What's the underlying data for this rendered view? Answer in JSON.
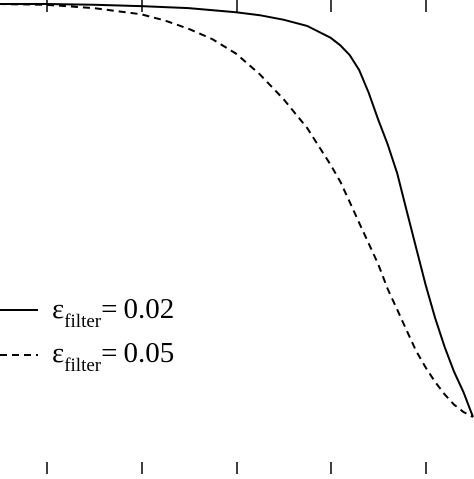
{
  "chart_data": {
    "type": "line",
    "title": "",
    "xlabel": "",
    "ylabel": "",
    "xlim": [
      0,
      1
    ],
    "ylim": [
      0,
      1
    ],
    "grid": false,
    "legend": {
      "placement": "bottom-left",
      "entries": [
        {
          "symbol": "ε",
          "subscript": "filter",
          "relation": "=",
          "value": "0.02",
          "style": "solid"
        },
        {
          "symbol": "ε",
          "subscript": "filter",
          "relation": "=",
          "value": "0.05",
          "style": "dashed"
        }
      ]
    },
    "series": [
      {
        "name": "ε_filter = 0.02",
        "style": "solid",
        "x": [
          0.0,
          0.1,
          0.2,
          0.3,
          0.4,
          0.5,
          0.55,
          0.6,
          0.65,
          0.7,
          0.72,
          0.74,
          0.76,
          0.78,
          0.8,
          0.82,
          0.84,
          0.86,
          0.88,
          0.9,
          0.92,
          0.94,
          0.96,
          0.98,
          1.0
        ],
        "y": [
          1.0,
          1.0,
          0.998,
          0.995,
          0.99,
          0.98,
          0.973,
          0.962,
          0.947,
          0.918,
          0.9,
          0.876,
          0.84,
          0.785,
          0.72,
          0.66,
          0.59,
          0.5,
          0.41,
          0.32,
          0.24,
          0.17,
          0.11,
          0.06,
          0.0
        ]
      },
      {
        "name": "ε_filter = 0.05",
        "style": "dashed",
        "x": [
          0.0,
          0.1,
          0.2,
          0.3,
          0.35,
          0.4,
          0.45,
          0.5,
          0.55,
          0.6,
          0.65,
          0.7,
          0.72,
          0.74,
          0.76,
          0.78,
          0.8,
          0.82,
          0.84,
          0.86,
          0.88,
          0.9,
          0.92,
          0.94,
          0.96,
          0.98,
          1.0
        ],
        "y": [
          1.0,
          0.998,
          0.99,
          0.975,
          0.96,
          0.94,
          0.915,
          0.88,
          0.83,
          0.77,
          0.7,
          0.61,
          0.57,
          0.52,
          0.47,
          0.42,
          0.37,
          0.31,
          0.26,
          0.21,
          0.16,
          0.12,
          0.085,
          0.055,
          0.03,
          0.012,
          0.0
        ]
      }
    ],
    "tick_count": 5
  }
}
